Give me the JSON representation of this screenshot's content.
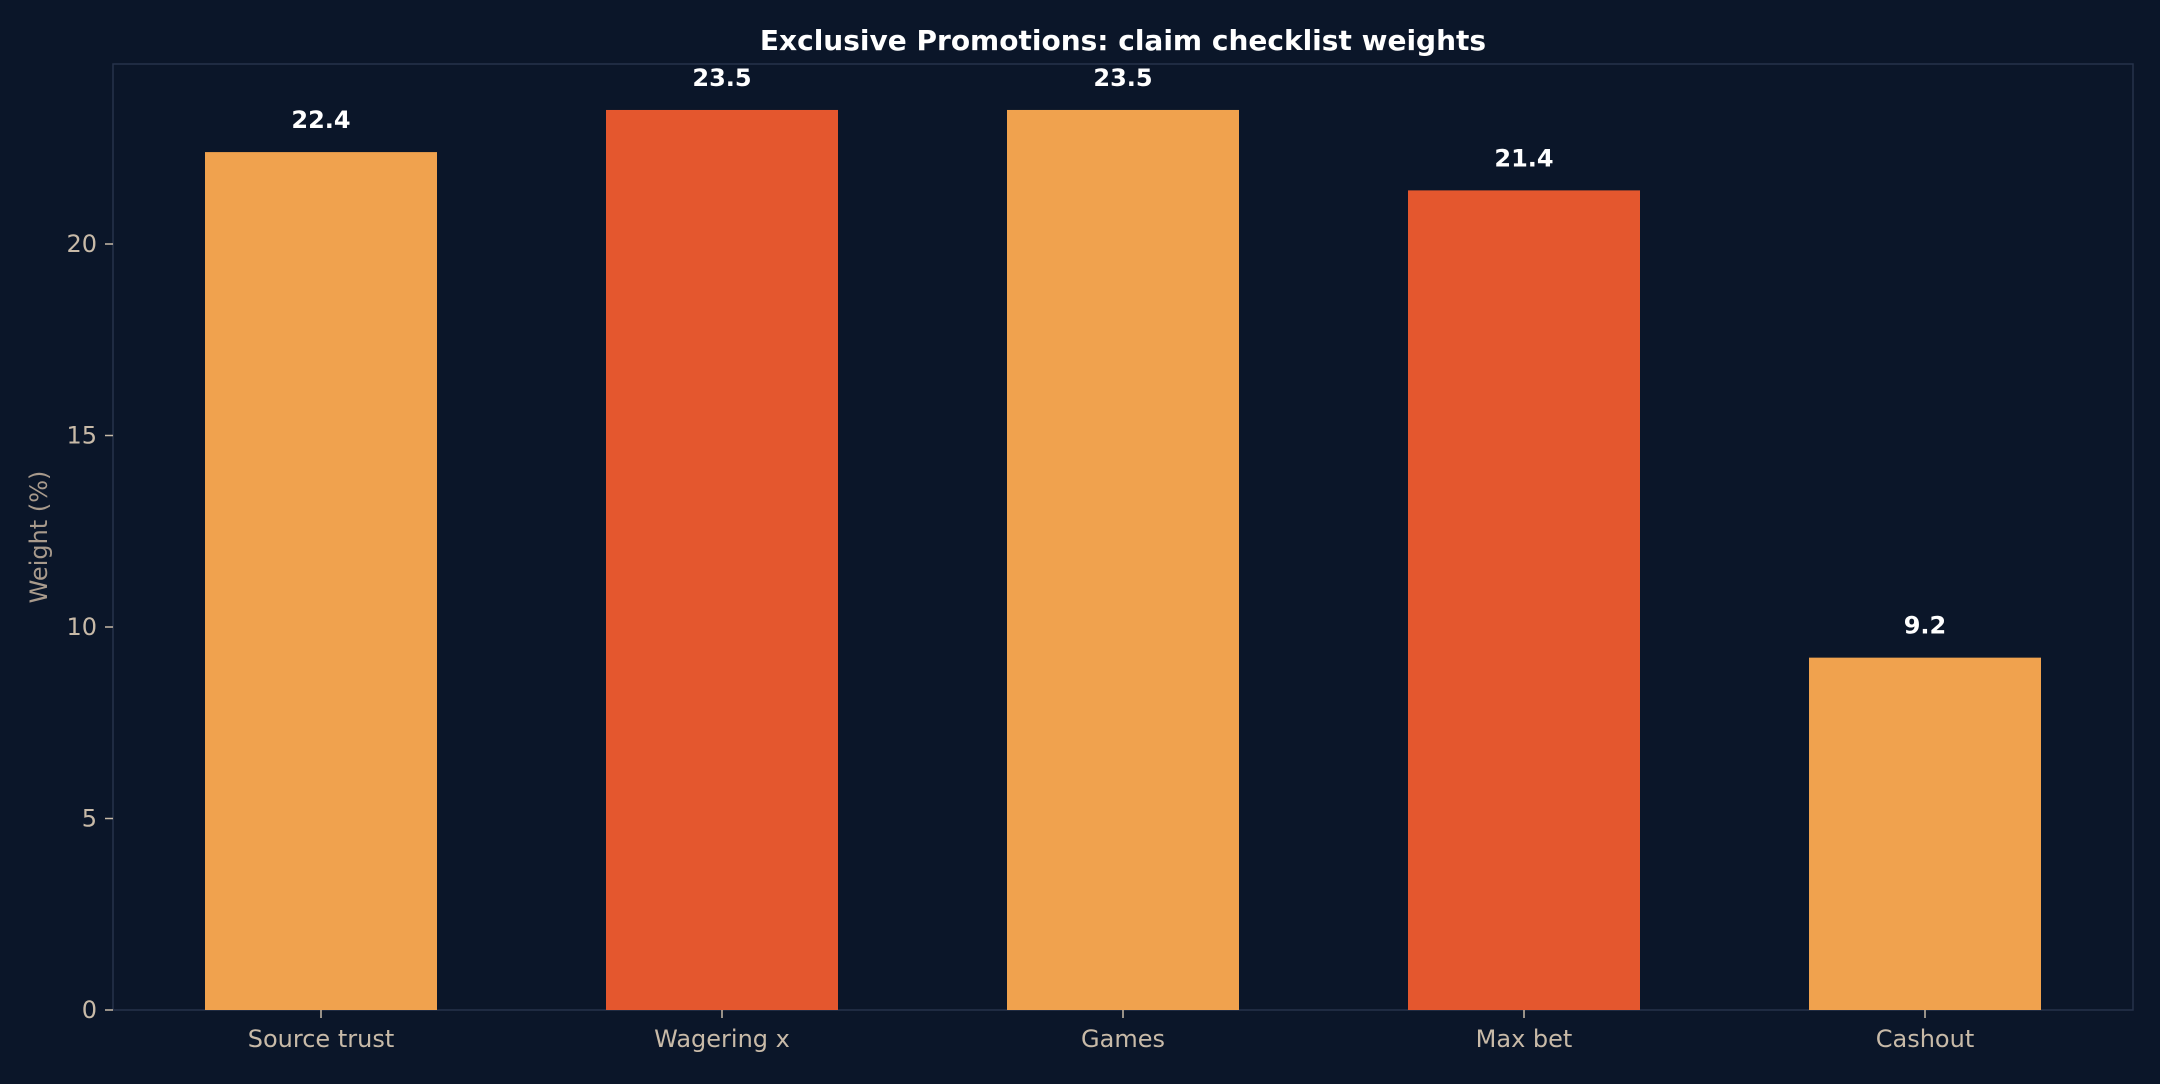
{
  "chart_data": {
    "type": "bar",
    "title": "Exclusive Promotions: claim checklist weights",
    "xlabel": "",
    "ylabel": "Weight (%)",
    "categories": [
      "Source trust",
      "Wagering x",
      "Games",
      "Max bet",
      "Cashout"
    ],
    "values": [
      22.4,
      23.5,
      23.5,
      21.4,
      9.2
    ],
    "value_labels": [
      "22.4",
      "23.5",
      "23.5",
      "21.4",
      "9.2"
    ],
    "bar_colors": [
      "#f0a24e",
      "#e4572e",
      "#f0a24e",
      "#e4572e",
      "#f0a24e"
    ],
    "ylim": [
      0,
      24.7
    ],
    "yticks": [
      0,
      5,
      10,
      15,
      20
    ],
    "ytick_labels": [
      "0",
      "5",
      "10",
      "15",
      "20"
    ],
    "grid": false,
    "legend": "none",
    "colors": {
      "background": "#0b1629",
      "frame": "#26324a",
      "tick_text": "#c8baa8",
      "title_text": "#ffffff"
    }
  }
}
